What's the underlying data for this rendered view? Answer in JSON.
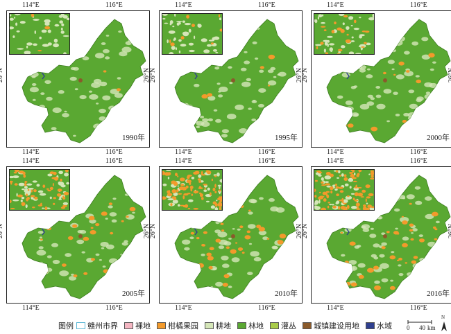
{
  "panels": [
    {
      "year": "1990年",
      "lon_left": "114°E",
      "lon_right": "116°E",
      "lat": "26°N",
      "orchard_level": 0.02
    },
    {
      "year": "1995年",
      "lon_left": "114°E",
      "lon_right": "116°E",
      "lat": "26°N",
      "orchard_level": 0.05
    },
    {
      "year": "2000年",
      "lon_left": "114°E",
      "lon_right": "116°E",
      "lat": "26°N",
      "orchard_level": 0.12
    },
    {
      "year": "2005年",
      "lon_left": "114°E",
      "lon_right": "116°E",
      "lat": "26°N",
      "orchard_level": 0.3
    },
    {
      "year": "2010年",
      "lon_left": "114°E",
      "lon_right": "116°E",
      "lat": "26°N",
      "orchard_level": 0.45
    },
    {
      "year": "2016年",
      "lon_left": "114°E",
      "lon_right": "116°E",
      "lat": "26°N",
      "orchard_level": 0.5
    }
  ],
  "legend": {
    "title": "图例",
    "items": [
      {
        "label": "赣州市界",
        "color": "#ffffff",
        "border": "#5bb7d6"
      },
      {
        "label": "裸地",
        "color": "#f4b6c2",
        "border": "#555"
      },
      {
        "label": "柑橘果园",
        "color": "#f39a2b",
        "border": "#555"
      },
      {
        "label": "耕地",
        "color": "#d5e6b8",
        "border": "#555"
      },
      {
        "label": "林地",
        "color": "#5aa832",
        "border": "#555"
      },
      {
        "label": "灌丛",
        "color": "#a9cc4a",
        "border": "#555"
      },
      {
        "label": "城镇建设用地",
        "color": "#8a5a2b",
        "border": "#555"
      },
      {
        "label": "水域",
        "color": "#2f3f8f",
        "border": "#555"
      }
    ]
  },
  "scale_bar": {
    "zero": "0",
    "dist": "40",
    "unit": "km"
  },
  "north": {
    "label": "N"
  }
}
